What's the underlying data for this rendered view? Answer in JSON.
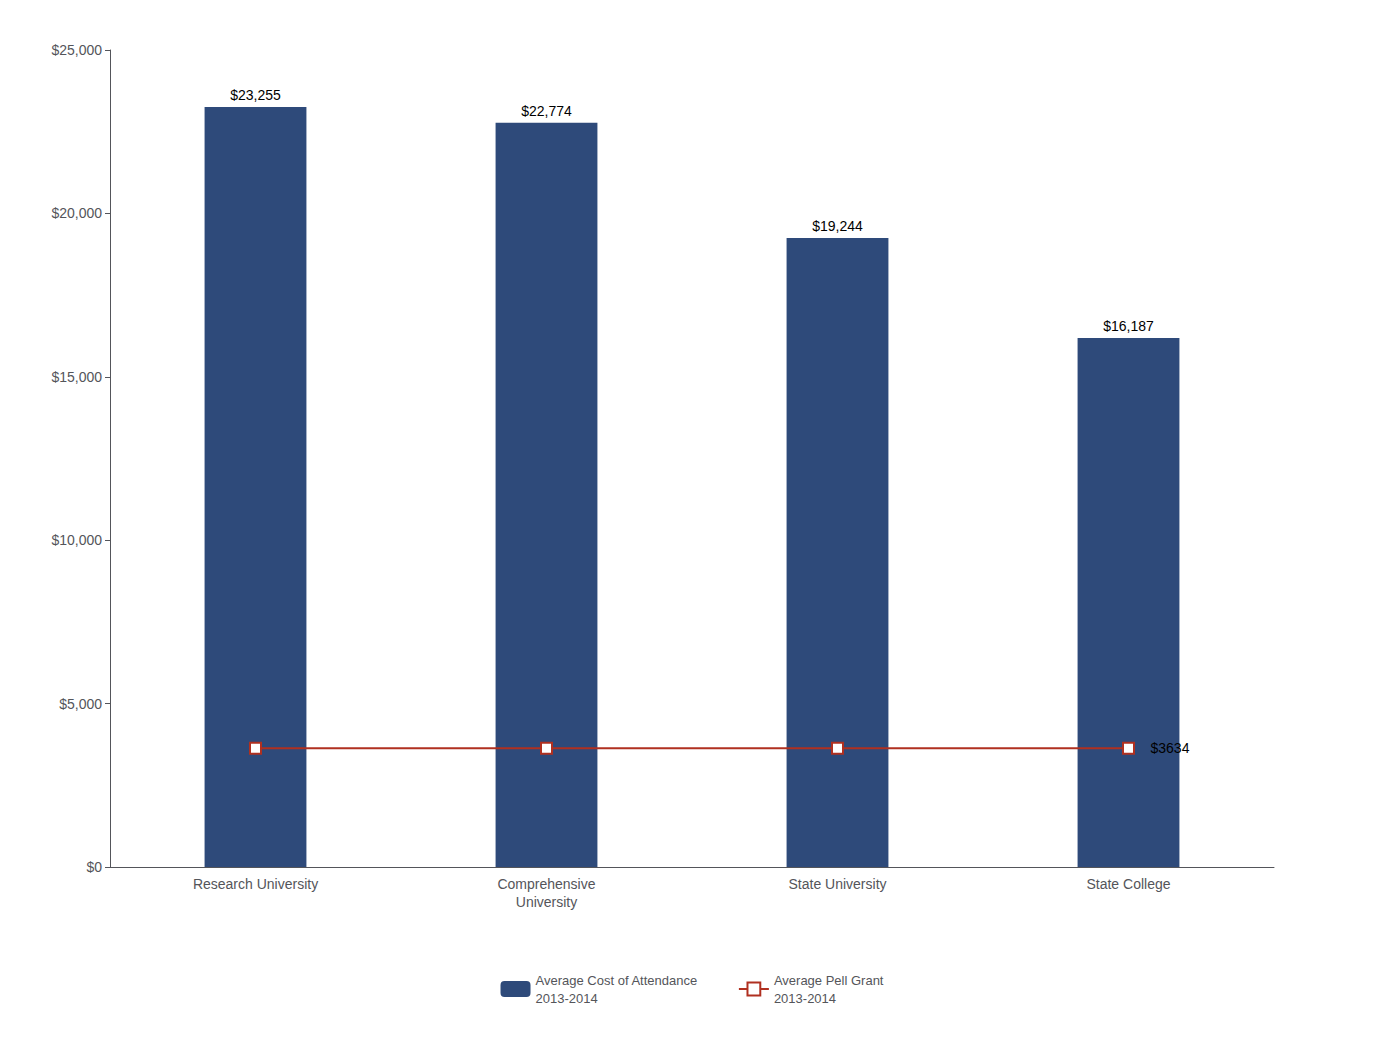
{
  "chart_data": {
    "type": "bar",
    "categories": [
      "Research University",
      "Comprehensive\nUniversity",
      "State University",
      "State College"
    ],
    "series": [
      {
        "name": "Average Cost of Attendance\n2013-2014",
        "type": "bar",
        "color": "#2E4A7A",
        "values": [
          23255,
          22774,
          19244,
          16187
        ],
        "value_labels": [
          "$23,255",
          "$22,774",
          "$19,244",
          "$16,187"
        ],
        "data_labels": true
      },
      {
        "name": "Average Pell Grant\n2013-2014",
        "type": "line",
        "color": "#B03020",
        "marker": "square",
        "values": [
          3634,
          3634,
          3634,
          3634
        ]
      }
    ],
    "annotations": [
      {
        "text": "$3634",
        "category": "State College",
        "value": 3634
      }
    ],
    "ylim": [
      0,
      25000
    ],
    "yticks": [
      {
        "value": 0,
        "label": "$0"
      },
      {
        "value": 5000,
        "label": "$5,000"
      },
      {
        "value": 10000,
        "label": "$10,000"
      },
      {
        "value": 15000,
        "label": "$15,000"
      },
      {
        "value": 20000,
        "label": "$20,000"
      },
      {
        "value": 25000,
        "label": "$25,000"
      }
    ],
    "grid": false,
    "legend": "bottom"
  }
}
